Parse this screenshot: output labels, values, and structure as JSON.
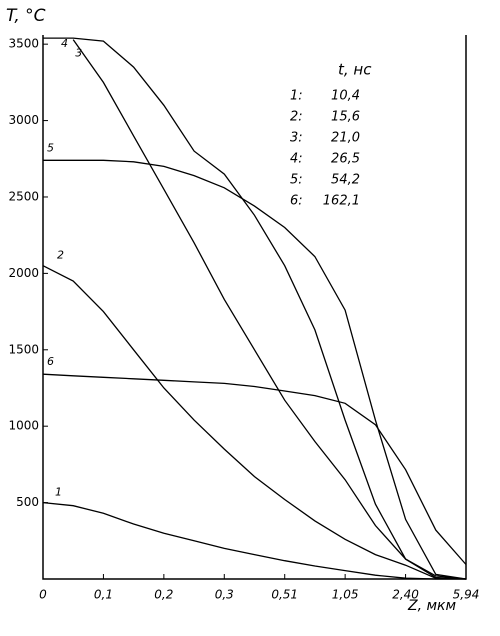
{
  "chart_data": {
    "type": "line",
    "y_label": "T, °C",
    "x_label": "Z, мкм",
    "x": [
      0,
      0.05,
      0.1,
      0.15,
      0.2,
      0.25,
      0.3,
      0.405,
      0.51,
      0.78,
      1.05,
      1.725,
      2.4,
      4.17,
      5.94
    ],
    "series": [
      {
        "name": "1",
        "color": "#000",
        "values": [
          500,
          480,
          430,
          360,
          300,
          250,
          200,
          160,
          120,
          85,
          55,
          25,
          5,
          0,
          0
        ]
      },
      {
        "name": "2",
        "color": "#000",
        "values": [
          2050,
          1950,
          1750,
          1500,
          1250,
          1040,
          850,
          670,
          520,
          380,
          260,
          160,
          90,
          5,
          0
        ]
      },
      {
        "name": "3",
        "color": "#000",
        "values": [
          null,
          3530,
          3250,
          2900,
          2550,
          2200,
          1830,
          1500,
          1170,
          900,
          650,
          350,
          130,
          20,
          0
        ]
      },
      {
        "name": "4",
        "color": "#000",
        "values": [
          3540,
          3540,
          3520,
          3350,
          3100,
          2800,
          2650,
          2380,
          2050,
          1630,
          1040,
          490,
          130,
          10,
          0
        ]
      },
      {
        "name": "5",
        "color": "#000",
        "values": [
          2740,
          2740,
          2740,
          2730,
          2700,
          2640,
          2560,
          2440,
          2300,
          2110,
          1760,
          1040,
          390,
          30,
          0
        ]
      },
      {
        "name": "6",
        "color": "#000",
        "values": [
          1340,
          1330,
          1320,
          1310,
          1300,
          1290,
          1280,
          1260,
          1230,
          1200,
          1150,
          1010,
          715,
          320,
          95
        ]
      }
    ],
    "legend": {
      "title": "t, нс",
      "rows": [
        [
          "1:",
          "10,4"
        ],
        [
          "2:",
          "15,6"
        ],
        [
          "3:",
          "21,0"
        ],
        [
          "4:",
          "26,5"
        ],
        [
          "5:",
          "54,2"
        ],
        [
          "6:",
          "162,1"
        ]
      ]
    },
    "ylim": [
      0,
      3560
    ],
    "yticks": [
      500,
      1000,
      1500,
      2000,
      2500,
      3000,
      3500
    ],
    "xlim": [
      0,
      5.94
    ],
    "xticks": [
      0,
      {
        "value": 0.1,
        "label": "0,1"
      },
      {
        "value": 0.2,
        "label": "0,2"
      },
      {
        "value": 0.3,
        "label": "0,3"
      },
      {
        "value": 0.51,
        "label": "0,51"
      },
      {
        "value": 1.05,
        "label": "1,05"
      },
      {
        "value": 2.4,
        "label": "2,40"
      },
      {
        "value": 5.94,
        "label": "5,94"
      }
    ]
  }
}
